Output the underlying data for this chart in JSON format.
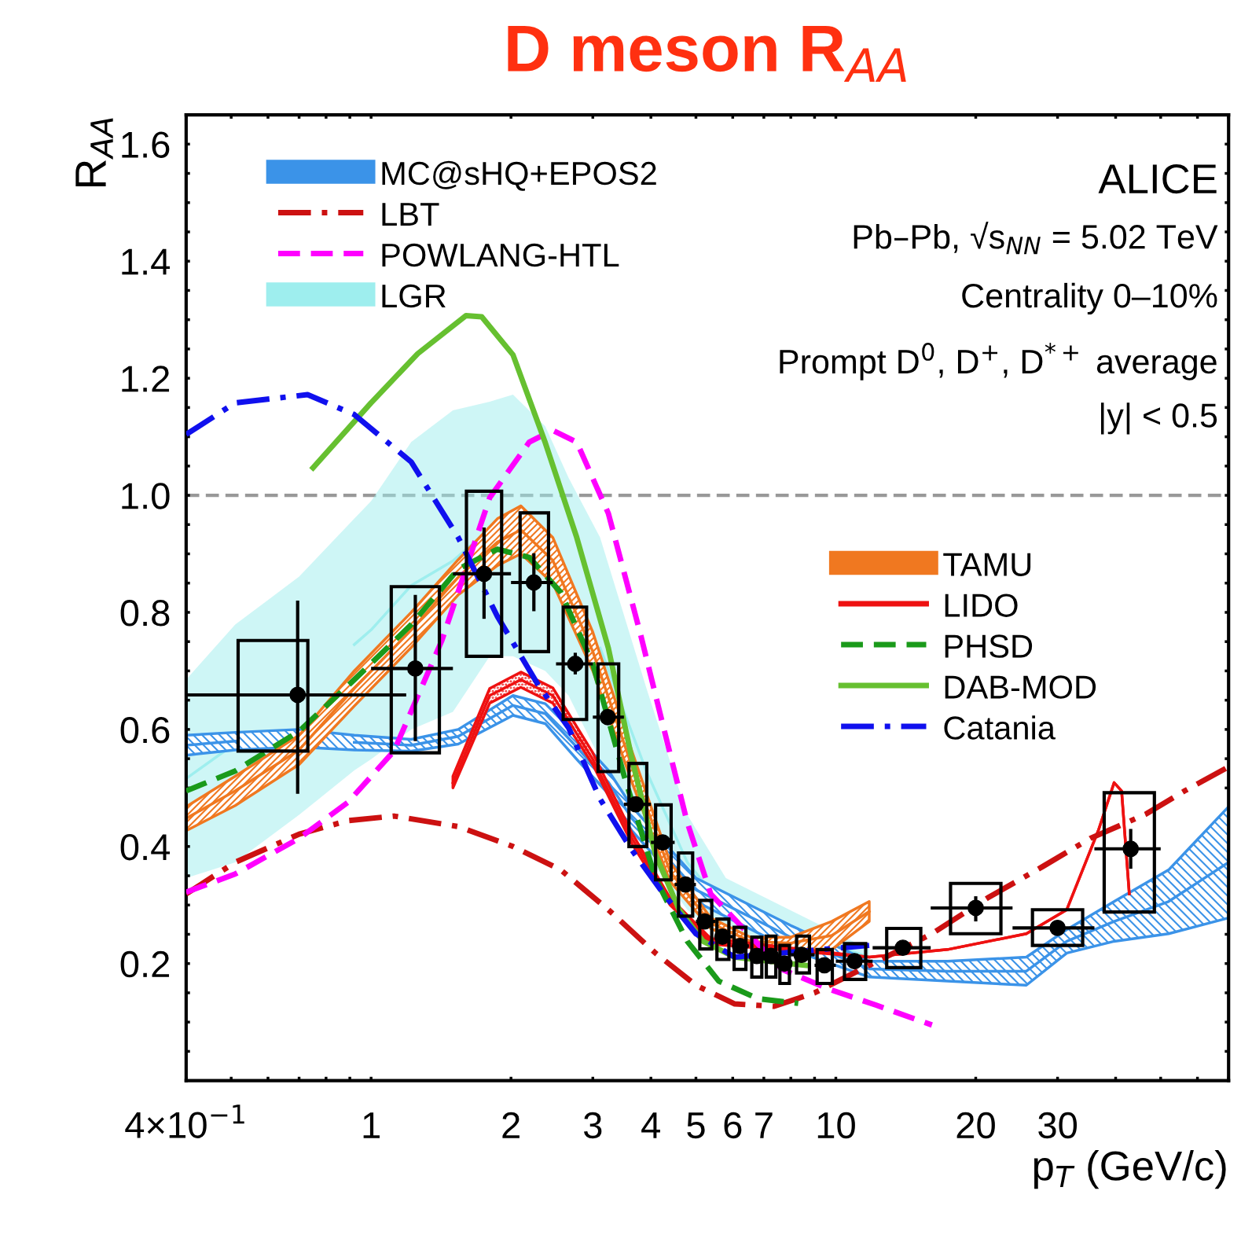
{
  "chart_data": {
    "type": "line",
    "title": "D meson R$_{AA}$",
    "xlabel": "p$_{T}$ (GeV/c)",
    "ylabel": "R$_{AA}$",
    "log": "x",
    "legend": "top left",
    "grid": false,
    "xlim": [
      0.4,
      70
    ],
    "ylim": [
      0,
      1.65
    ],
    "xticks": [
      {
        "value": 0.4,
        "label": "4×10$^{−1}$"
      },
      {
        "value": 0.5,
        "label": null
      },
      {
        "value": 0.6,
        "label": null
      },
      {
        "value": 0.7,
        "label": null
      },
      {
        "value": 0.8,
        "label": null
      },
      {
        "value": 0.9,
        "label": null
      },
      1,
      2,
      3,
      4,
      5,
      6,
      7,
      {
        "value": 8,
        "label": null
      },
      {
        "value": 9,
        "label": null
      },
      10,
      20,
      30,
      {
        "value": 40,
        "label": null
      },
      {
        "value": 50,
        "label": null
      },
      {
        "value": 60,
        "label": null
      },
      {
        "value": 70,
        "label": null
      }
    ],
    "yticks": [
      {
        "value": 0.05,
        "label": null
      },
      {
        "value": 0.1,
        "label": null
      },
      {
        "value": 0.15,
        "label": null
      },
      {
        "value": 0.2,
        "label": "0.2"
      },
      {
        "value": 0.25,
        "label": null
      },
      {
        "value": 0.3,
        "label": null
      },
      {
        "value": 0.35,
        "label": null
      },
      {
        "value": 0.4,
        "label": "0.4"
      },
      {
        "value": 0.45,
        "label": null
      },
      {
        "value": 0.5,
        "label": null
      },
      {
        "value": 0.55,
        "label": null
      },
      {
        "value": 0.6,
        "label": "0.6"
      },
      {
        "value": 0.65,
        "label": null
      },
      {
        "value": 0.7,
        "label": null
      },
      {
        "value": 0.75,
        "label": null
      },
      {
        "value": 0.8,
        "label": "0.8"
      },
      {
        "value": 0.85,
        "label": null
      },
      {
        "value": 0.9,
        "label": null
      },
      {
        "value": 0.95,
        "label": null
      },
      {
        "value": 1.0,
        "label": "1.0"
      },
      {
        "value": 1.05,
        "label": null
      },
      {
        "value": 1.1,
        "label": null
      },
      {
        "value": 1.15,
        "label": null
      },
      {
        "value": 1.2,
        "label": "1.2"
      },
      {
        "value": 1.25,
        "label": null
      },
      {
        "value": 1.3,
        "label": null
      },
      {
        "value": 1.35,
        "label": null
      },
      {
        "value": 1.4,
        "label": "1.4"
      },
      {
        "value": 1.45,
        "label": null
      },
      {
        "value": 1.5,
        "label": null
      },
      {
        "value": 1.55,
        "label": null
      },
      {
        "value": 1.6,
        "label": "1.6"
      }
    ],
    "ref_lines": [
      {
        "axis": "y",
        "value": 1.0,
        "color": "#999999",
        "line_style": "dashed"
      }
    ],
    "annotations": [
      "ALICE",
      "Pb–Pb, √s$_{NN}$ = 5.02 TeV",
      "Centrality 0–10%",
      "Prompt D$^{0}$, D$^{+}$, D$^{*+}$ average",
      "|y| < 0.5"
    ],
    "series": [
      {
        "name": "MC@sHQ+EPOS2",
        "color": "#3b93e8",
        "x": [
          0.4,
          0.51,
          0.7,
          0.92,
          1.22,
          1.54,
          2.02,
          2.37,
          2.77,
          3.24,
          3.64,
          5.0,
          8.0,
          11.8,
          17.4,
          25.7,
          31.4,
          39.7,
          52.0,
          70.0
        ],
        "values": [
          0.573,
          0.58,
          null,
          0.578,
          0.573,
          0.588,
          0.641,
          0.627,
          0.57,
          0.51,
          0.448,
          0.326,
          0.245,
          0.191,
          0.187,
          0.187,
          0.238,
          0.272,
          0.306,
          0.373
        ],
        "lower": [
          0.556,
          0.565,
          0.57,
          0.565,
          0.563,
          0.575,
          0.624,
          0.61,
          0.549,
          0.49,
          0.427,
          0.306,
          0.224,
          0.177,
          0.17,
          0.163,
          0.218,
          0.238,
          0.251,
          0.278
        ],
        "upper": [
          0.59,
          0.595,
          0.6,
          0.59,
          0.583,
          0.6,
          0.658,
          0.644,
          0.59,
          0.53,
          0.468,
          0.346,
          0.265,
          0.204,
          0.204,
          0.211,
          0.258,
          0.306,
          0.36,
          0.468
        ]
      },
      {
        "name": "LBT",
        "color": "#cc1111",
        "line_style": "dashdot",
        "x": [
          0.4,
          0.51,
          0.7,
          0.89,
          1.12,
          1.54,
          2.02,
          2.56,
          3.24,
          4.09,
          5.0,
          6.06,
          7.37,
          9.0,
          11.8,
          16.1,
          21.2,
          27.9,
          35.3,
          46.4,
          56.3,
          70.0
        ],
        "values": [
          0.319,
          0.373,
          0.421,
          0.444,
          0.452,
          0.434,
          0.4,
          0.36,
          0.292,
          0.218,
          0.163,
          0.131,
          0.127,
          0.15,
          0.197,
          0.251,
          0.312,
          0.366,
          0.414,
          0.455,
          0.495,
          0.536
        ]
      },
      {
        "name": "POWLANG-HTL",
        "color": "#ff00ff",
        "line_style": "dashed",
        "x": [
          0.4,
          0.51,
          0.7,
          0.89,
          1.12,
          1.42,
          1.8,
          2.19,
          2.46,
          2.77,
          3.24,
          3.79,
          4.26,
          4.79,
          5.38,
          7.66,
          9.7,
          12.2,
          16.1
        ],
        "values": [
          0.322,
          0.353,
          0.414,
          0.475,
          0.563,
          0.752,
          0.996,
          1.091,
          1.111,
          1.091,
          0.969,
          0.766,
          0.603,
          0.441,
          0.319,
          0.19,
          0.156,
          0.129,
          0.095
        ]
      },
      {
        "name": "LGR",
        "color": "#9eeeee",
        "x": [
          0.4,
          0.51,
          0.7,
          0.92,
          1.0,
          1.22,
          1.5,
          1.8,
          2.02,
          2.37,
          2.66,
          3.11,
          3.91,
          4.79,
          5.8,
          11.8
        ],
        "values": [
          0.516,
          0.576,
          null,
          0.745,
          0.77,
          0.846,
          0.888,
          0.943,
          null,
          null,
          null,
          0.739,
          0.529,
          0.373,
          0.292,
          0.211
        ],
        "lower": [
          0.346,
          0.373,
          0.454,
          0.53,
          0.549,
          0.6,
          0.63,
          0.725,
          0.725,
          0.7,
          0.658,
          0.549,
          0.387,
          0.292,
          0.238,
          0.197
        ],
        "upper": [
          0.685,
          0.779,
          0.861,
          0.96,
          0.99,
          1.091,
          1.145,
          1.16,
          1.172,
          1.118,
          1.03,
          0.928,
          0.671,
          0.454,
          0.346,
          0.224
        ]
      },
      {
        "name": "TAMU",
        "color": "#f07820",
        "x": [
          0.4,
          0.51,
          0.7,
          0.92,
          1.22,
          1.54,
          1.87,
          2.1,
          2.46,
          3.0,
          3.64,
          4.4,
          5.38,
          6.55,
          8.0,
          9.8,
          11.8
        ],
        "values": [
          0.448,
          0.495,
          0.565,
          0.67,
          0.77,
          0.86,
          0.92,
          0.941,
          0.889,
          0.733,
          0.537,
          0.357,
          0.269,
          0.238,
          0.235,
          0.248,
          0.289
        ],
        "lower": [
          0.427,
          0.47,
          0.54,
          0.64,
          0.74,
          0.83,
          0.88,
          0.9,
          0.85,
          0.7,
          0.51,
          0.34,
          0.26,
          0.23,
          0.224,
          0.224,
          0.272
        ],
        "upper": [
          0.468,
          0.52,
          0.59,
          0.7,
          0.8,
          0.89,
          0.96,
          0.982,
          0.928,
          0.766,
          0.563,
          0.373,
          0.278,
          0.245,
          0.245,
          0.272,
          0.306
        ]
      },
      {
        "name": "LIDO",
        "color": "#ee1111",
        "x": [
          1.5,
          1.8,
          2.1,
          2.46,
          3.0,
          3.64,
          4.4,
          5.38,
          11.8,
          17.4,
          25.7,
          31.4,
          36.7,
          39.7,
          41.2,
          42.8
        ],
        "values": [
          0.509,
          0.658,
          0.685,
          0.658,
          0.549,
          0.414,
          0.306,
          0.238,
          0.211,
          0.224,
          0.251,
          0.292,
          0.427,
          0.509,
          0.495,
          0.319
        ],
        "lower": [
          0.5,
          0.645,
          0.672,
          0.645,
          0.54,
          0.405,
          0.3,
          0.233,
          0.211,
          0.224,
          0.251,
          0.292,
          0.427,
          0.509,
          0.495,
          0.319
        ],
        "upper": [
          0.52,
          0.67,
          0.698,
          0.671,
          0.56,
          0.423,
          0.312,
          0.243,
          0.211,
          0.224,
          0.251,
          0.292,
          0.427,
          0.509,
          0.495,
          0.319
        ]
      },
      {
        "name": "PHSD",
        "color": "#1a9a1a",
        "line_style": "dashed",
        "x": [
          0.4,
          0.51,
          0.7,
          0.92,
          1.22,
          1.54,
          1.87,
          2.19,
          2.56,
          3.0,
          3.5,
          4.09,
          4.79,
          5.6,
          6.8,
          8.3
        ],
        "values": [
          0.495,
          0.529,
          0.597,
          0.685,
          0.779,
          0.874,
          0.908,
          0.894,
          0.834,
          0.712,
          0.522,
          0.346,
          0.238,
          0.17,
          0.14,
          0.132
        ]
      },
      {
        "name": "DAB-MOD",
        "color": "#66c030",
        "x": [
          0.75,
          1.0,
          1.26,
          1.6,
          1.73,
          2.02,
          2.37,
          2.77,
          3.24,
          3.64,
          4.09,
          4.6,
          5.18,
          6.06,
          8.6
        ],
        "values": [
          1.047,
          1.158,
          1.242,
          1.307,
          1.305,
          1.24,
          1.09,
          0.928,
          0.739,
          0.55,
          0.387,
          0.292,
          0.238,
          0.211,
          0.197
        ]
      },
      {
        "name": "Catania",
        "color": "#1010ee",
        "line_style": "dashdot",
        "x": [
          0.4,
          0.51,
          0.73,
          0.92,
          1.22,
          1.54,
          1.87,
          2.28,
          2.66,
          3.11,
          3.64,
          4.26,
          5.0,
          6.06,
          9.3,
          11.8
        ],
        "values": [
          1.104,
          1.158,
          1.172,
          1.138,
          1.057,
          0.928,
          0.793,
          0.678,
          0.603,
          0.481,
          0.394,
          0.319,
          0.251,
          0.211,
          0.224,
          0.231
        ]
      },
      {
        "type": "bar",
        "color": "#000000",
        "x": [
          0.615,
          1.245,
          1.75,
          2.245,
          2.745,
          3.24,
          3.75,
          4.255,
          4.75,
          5.25,
          5.715,
          6.22,
          6.76,
          7.255,
          7.76,
          8.5,
          9.465,
          11.0,
          14.0,
          20.0,
          30.0,
          42.8
        ],
        "base": [
          0.563,
          0.56,
          0.725,
          0.733,
          0.617,
          0.528,
          0.4,
          0.343,
          0.281,
          0.225,
          0.207,
          0.19,
          0.177,
          0.177,
          0.166,
          0.184,
          0.166,
          0.173,
          0.193,
          0.251,
          0.231,
          0.288
        ],
        "values": [
          0.189,
          0.284,
          0.282,
          0.237,
          0.192,
          0.184,
          0.142,
          0.128,
          0.108,
          0.083,
          0.069,
          0.072,
          0.068,
          0.07,
          0.065,
          0.063,
          0.058,
          0.061,
          0.067,
          0.086,
          0.061,
          0.204
        ]
      },
      {
        "type": "scatter",
        "color": "#000000",
        "marker": "circle",
        "x": [
          0.695,
          1.245,
          1.75,
          2.24,
          2.75,
          3.23,
          3.71,
          4.24,
          4.75,
          5.22,
          5.7,
          6.22,
          6.76,
          7.25,
          7.75,
          8.44,
          9.45,
          10.97,
          13.94,
          20.0,
          30.0,
          43.1
        ],
        "values": [
          0.659,
          0.704,
          0.866,
          0.851,
          0.712,
          0.621,
          0.472,
          0.407,
          0.335,
          0.272,
          0.246,
          0.23,
          0.213,
          0.213,
          0.2,
          0.215,
          0.197,
          0.204,
          0.227,
          0.295,
          0.261,
          0.396
        ],
        "errors": [
          [
            0.49,
            0.82
          ],
          [
            0.58,
            0.83
          ],
          [
            0.789,
            0.945
          ],
          [
            0.802,
            0.901
          ],
          [
            0.694,
            0.731
          ],
          null,
          null,
          null,
          null,
          null,
          null,
          null,
          null,
          null,
          null,
          null,
          null,
          null,
          null,
          [
            0.272,
            0.315
          ],
          null,
          [
            0.362,
            0.43
          ]
        ],
        "xerrors": [
          [
            0.4,
            1.19
          ],
          [
            1.0,
            1.5
          ],
          [
            1.5,
            2.0
          ],
          [
            2.0,
            2.46
          ],
          [
            2.5,
            3.0
          ],
          [
            3.0,
            3.5
          ],
          [
            3.5,
            4.0
          ],
          [
            4.0,
            4.5
          ],
          [
            4.5,
            5.0
          ],
          [
            5.0,
            5.5
          ],
          [
            5.5,
            6.0
          ],
          [
            6.0,
            6.5
          ],
          null,
          null,
          null,
          [
            8.0,
            9.0
          ],
          [
            9.0,
            10.0
          ],
          [
            10.0,
            12.0
          ],
          [
            12.0,
            16.0
          ],
          [
            16.0,
            24.0
          ],
          [
            24.0,
            36.0
          ],
          [
            36.0,
            50.0
          ]
        ]
      }
    ]
  }
}
